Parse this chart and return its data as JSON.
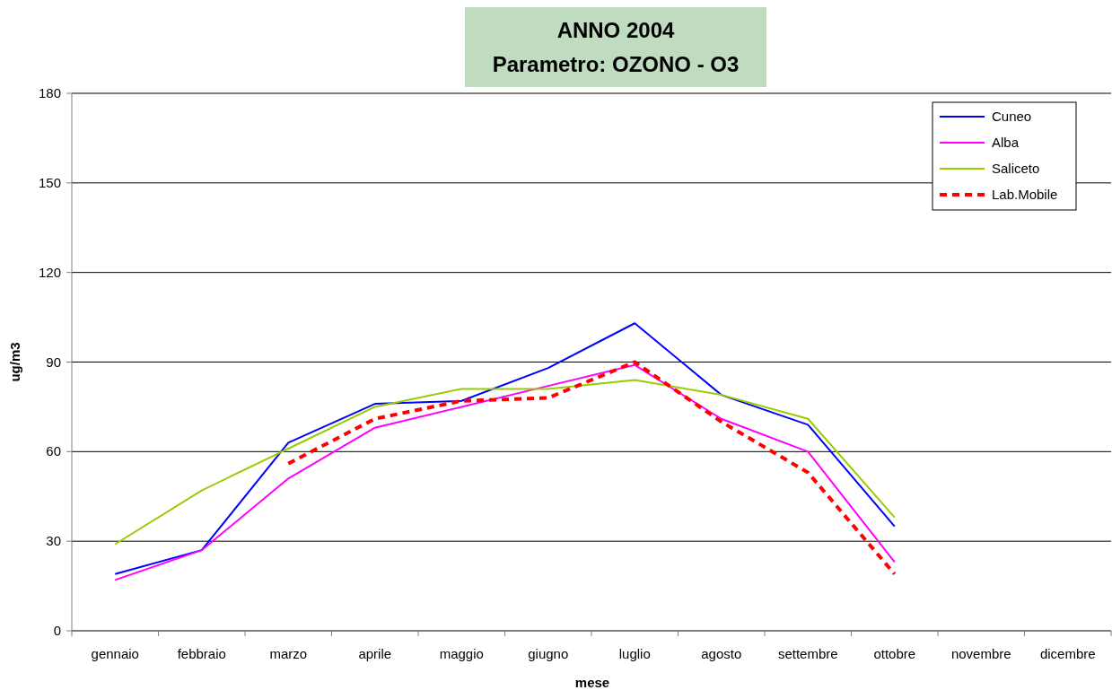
{
  "chart_data": {
    "type": "line",
    "title": "ANNO  2004",
    "subtitle": "Parametro: OZONO - O3",
    "xlabel": "mese",
    "ylabel": "ug/m3",
    "categories": [
      "gennaio",
      "febbraio",
      "marzo",
      "aprile",
      "maggio",
      "giugno",
      "luglio",
      "agosto",
      "settembre",
      "ottobre",
      "novembre",
      "dicembre"
    ],
    "series": [
      {
        "name": "Cuneo",
        "color": "#0000ff",
        "values": [
          19,
          27,
          63,
          76,
          77,
          88,
          103,
          79,
          69,
          35,
          null,
          null
        ]
      },
      {
        "name": "Alba",
        "color": "#ff00ff",
        "values": [
          17,
          27,
          51,
          68,
          75,
          82,
          89,
          71,
          60,
          23,
          null,
          null
        ]
      },
      {
        "name": "Saliceto",
        "color": "#99cc00",
        "values": [
          29,
          47,
          61,
          75,
          81,
          81,
          84,
          79,
          71,
          38,
          null,
          null
        ]
      },
      {
        "name": "Lab.Mobile",
        "color": "#ff0000",
        "line_style": "dashed",
        "values": [
          null,
          null,
          56,
          71,
          77,
          78,
          90,
          70,
          53,
          19,
          null,
          null
        ]
      }
    ],
    "ylim": [
      0,
      180
    ],
    "yticks": [
      0,
      30,
      60,
      90,
      120,
      150,
      180
    ],
    "grid": "y",
    "legend": "top right",
    "marker": "none"
  }
}
